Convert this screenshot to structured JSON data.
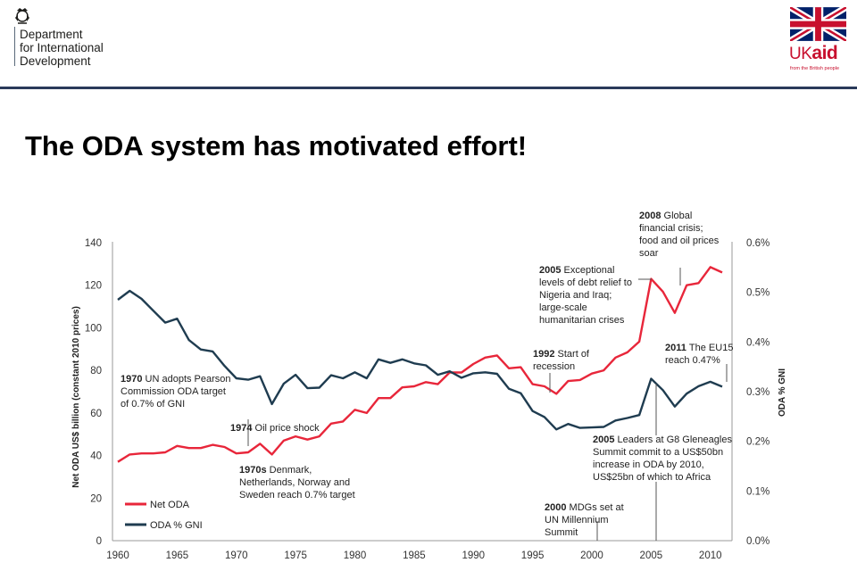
{
  "header": {
    "org_lines": [
      "Department",
      "for International",
      "Development"
    ],
    "logo_word": "UKaid",
    "logo_uk": "UK",
    "logo_aid": "aid",
    "logo_tagline": "from the British people",
    "colors": {
      "bar": "#2a3a5a",
      "red": "#c8102e",
      "blue": "#012169"
    }
  },
  "slide": {
    "title": "The ODA system has motivated effort!"
  },
  "chart_data": {
    "type": "line",
    "title": "",
    "xlabel": "",
    "ylabel_left": "Net ODA US$ billion (constant 2010 prices)",
    "ylabel_right": "ODA % GNI",
    "xlim": [
      1960,
      2011
    ],
    "ylim_left": [
      0,
      140
    ],
    "ylim_right": [
      0,
      0.6
    ],
    "x_ticks": [
      1960,
      1965,
      1970,
      1975,
      1980,
      1985,
      1990,
      1995,
      2000,
      2005,
      2010
    ],
    "y_left_ticks": [
      0,
      20,
      40,
      60,
      80,
      100,
      120,
      140
    ],
    "y_right_ticks": [
      "0.0%",
      "0.1%",
      "0.2%",
      "0.3%",
      "0.4%",
      "0.5%",
      "0.6%"
    ],
    "legend_position": "bottom-left",
    "series": [
      {
        "name": "Net ODA",
        "axis": "left",
        "color": "#e8263a",
        "x": [
          1960,
          1961,
          1962,
          1963,
          1964,
          1965,
          1966,
          1967,
          1968,
          1969,
          1970,
          1971,
          1972,
          1973,
          1974,
          1975,
          1976,
          1977,
          1978,
          1979,
          1980,
          1981,
          1982,
          1983,
          1984,
          1985,
          1986,
          1987,
          1988,
          1989,
          1990,
          1991,
          1992,
          1993,
          1994,
          1995,
          1996,
          1997,
          1998,
          1999,
          2000,
          2001,
          2002,
          2003,
          2004,
          2005,
          2006,
          2007,
          2008,
          2009,
          2010,
          2011
        ],
        "values": [
          37,
          40.5,
          41,
          41,
          41.5,
          44.5,
          43.5,
          43.5,
          45,
          44,
          41,
          41.5,
          45.5,
          40.5,
          47,
          49,
          47.5,
          49,
          55,
          56,
          61.5,
          60,
          67,
          67,
          72,
          72.5,
          74.5,
          73.5,
          79,
          79,
          83,
          86,
          87,
          81,
          81.5,
          73.5,
          72.5,
          69,
          75,
          75.5,
          78.5,
          80,
          86,
          88.5,
          93.5,
          123,
          117,
          107,
          120,
          121,
          128.5,
          126
        ]
      },
      {
        "name": "ODA % GNI",
        "axis": "right",
        "color": "#1f3c50",
        "x": [
          1960,
          1961,
          1962,
          1963,
          1964,
          1965,
          1966,
          1967,
          1968,
          1969,
          1970,
          1971,
          1972,
          1973,
          1974,
          1975,
          1976,
          1977,
          1978,
          1979,
          1980,
          1981,
          1982,
          1983,
          1984,
          1985,
          1986,
          1987,
          1988,
          1989,
          1990,
          1991,
          1992,
          1993,
          1994,
          1995,
          1996,
          1997,
          1998,
          1999,
          2000,
          2001,
          2002,
          2003,
          2004,
          2005,
          2006,
          2007,
          2008,
          2009,
          2010,
          2011
        ],
        "values": [
          0.485,
          0.503,
          0.487,
          0.463,
          0.439,
          0.447,
          0.404,
          0.385,
          0.381,
          0.352,
          0.327,
          0.324,
          0.331,
          0.275,
          0.316,
          0.334,
          0.307,
          0.308,
          0.333,
          0.327,
          0.339,
          0.327,
          0.365,
          0.358,
          0.365,
          0.357,
          0.353,
          0.334,
          0.341,
          0.328,
          0.337,
          0.339,
          0.336,
          0.306,
          0.297,
          0.261,
          0.249,
          0.224,
          0.235,
          0.227,
          0.228,
          0.229,
          0.242,
          0.247,
          0.253,
          0.326,
          0.303,
          0.27,
          0.296,
          0.311,
          0.32,
          0.31
        ]
      }
    ],
    "annotations": [
      {
        "id": "a1970",
        "bold": "1970",
        "lines": [
          "UN adopts Pearson",
          "Commission ODA target",
          "of 0.7% of GNI"
        ]
      },
      {
        "id": "a1974",
        "bold": "1974",
        "lines": [
          "Oil price shock"
        ]
      },
      {
        "id": "a1970s",
        "bold": "1970s",
        "lines": [
          "Denmark,",
          "Netherlands, Norway and",
          "Sweden reach 0.7% target"
        ]
      },
      {
        "id": "a1992",
        "bold": "1992",
        "lines": [
          "Start of",
          "recession"
        ]
      },
      {
        "id": "a2000",
        "bold": "2000",
        "lines": [
          "MDGs set at",
          "UN Millennium",
          "Summit"
        ]
      },
      {
        "id": "a2005a",
        "bold": "2005",
        "lines": [
          "Exceptional",
          "levels of debt relief to",
          "Nigeria and Iraq;",
          "large-scale",
          "humanitarian crises"
        ]
      },
      {
        "id": "a2005b",
        "bold": "2005",
        "lines": [
          "Leaders at G8 Gleneagles",
          "Summit commit to a US$50bn",
          "increase in ODA by 2010,",
          "US$25bn of which to Africa"
        ]
      },
      {
        "id": "a2008",
        "bold": "2008",
        "lines": [
          "Global",
          "financial crisis;",
          "food and oil prices",
          "soar"
        ]
      },
      {
        "id": "a2011",
        "bold": "2011",
        "lines": [
          "The EU15",
          "reach 0.47%"
        ]
      }
    ]
  }
}
